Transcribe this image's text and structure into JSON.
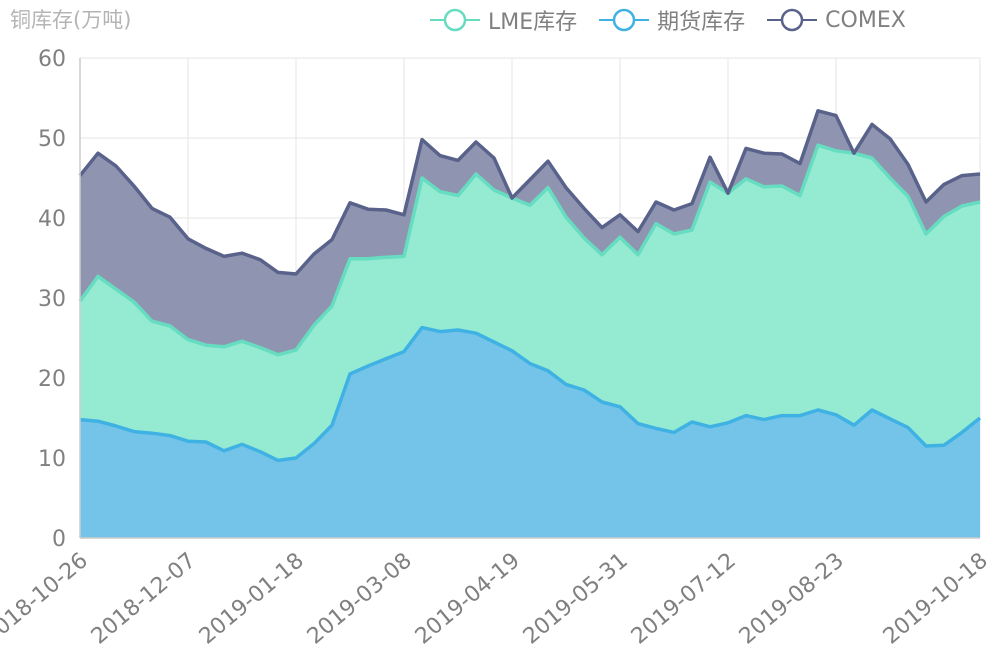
{
  "chart_data": {
    "type": "area",
    "stacked": true,
    "ylabel": "铜库存(万吨)",
    "ylim": [
      0,
      60
    ],
    "yticks": [
      0,
      10,
      20,
      30,
      40,
      50,
      60
    ],
    "x_tick_labels": [
      "2018-10-26",
      "2018-12-07",
      "2019-01-18",
      "2019-03-08",
      "2019-04-19",
      "2019-05-31",
      "2019-07-12",
      "2019-08-23",
      "2019-10-18"
    ],
    "x_tick_indices": [
      0,
      6,
      12,
      18,
      24,
      30,
      36,
      42,
      50
    ],
    "grid": true,
    "legend_position": "top-right",
    "series": [
      {
        "name": "期货库存",
        "color": "#3fb2e3",
        "fill": "#74c4ea",
        "values": [
          14.8,
          14.6,
          14.0,
          13.3,
          13.1,
          12.8,
          12.1,
          12.0,
          10.9,
          11.7,
          10.8,
          9.7,
          10.0,
          11.8,
          14.1,
          20.5,
          21.5,
          22.4,
          23.3,
          26.3,
          25.8,
          26.0,
          25.6,
          24.5,
          23.4,
          21.8,
          20.9,
          19.2,
          18.5,
          17.0,
          16.4,
          14.3,
          13.7,
          13.2,
          14.5,
          13.9,
          14.4,
          15.3,
          14.8,
          15.3,
          15.3,
          16.0,
          15.4,
          14.1,
          16.0,
          14.9,
          13.8,
          11.5,
          11.6,
          13.2,
          15.0
        ]
      },
      {
        "name": "LME库存",
        "color": "#66dcc0",
        "fill": "#94ebd2",
        "values": [
          14.8,
          18.1,
          17.1,
          16.2,
          14.0,
          13.7,
          12.7,
          12.1,
          13.0,
          12.9,
          13.0,
          13.2,
          13.5,
          14.8,
          14.9,
          14.4,
          13.4,
          12.7,
          11.9,
          18.7,
          17.5,
          16.8,
          19.9,
          19.0,
          19.1,
          19.8,
          22.9,
          20.9,
          19.0,
          18.4,
          21.2,
          21.1,
          25.6,
          24.8,
          24.0,
          30.6,
          28.7,
          29.6,
          29.1,
          28.7,
          27.5,
          33.1,
          33.0,
          34.0,
          31.5,
          30.1,
          28.9,
          26.5,
          28.6,
          28.3,
          27.0
        ]
      },
      {
        "name": "COMEX",
        "color": "#59628a",
        "fill": "#8f95b0",
        "values": [
          15.7,
          15.4,
          15.4,
          14.5,
          14.1,
          13.6,
          12.6,
          12.1,
          11.3,
          11.0,
          11.0,
          10.3,
          9.5,
          8.9,
          8.3,
          7.0,
          6.2,
          5.9,
          5.2,
          4.8,
          4.5,
          4.4,
          4.0,
          4.0,
          0.0,
          3.2,
          3.3,
          3.7,
          3.7,
          3.4,
          2.8,
          2.9,
          2.7,
          3.0,
          3.3,
          3.1,
          0.0,
          3.8,
          4.2,
          4.0,
          4.0,
          4.3,
          4.4,
          0.0,
          4.2,
          4.9,
          4.0,
          4.0,
          4.0,
          3.8,
          3.5
        ]
      }
    ]
  }
}
